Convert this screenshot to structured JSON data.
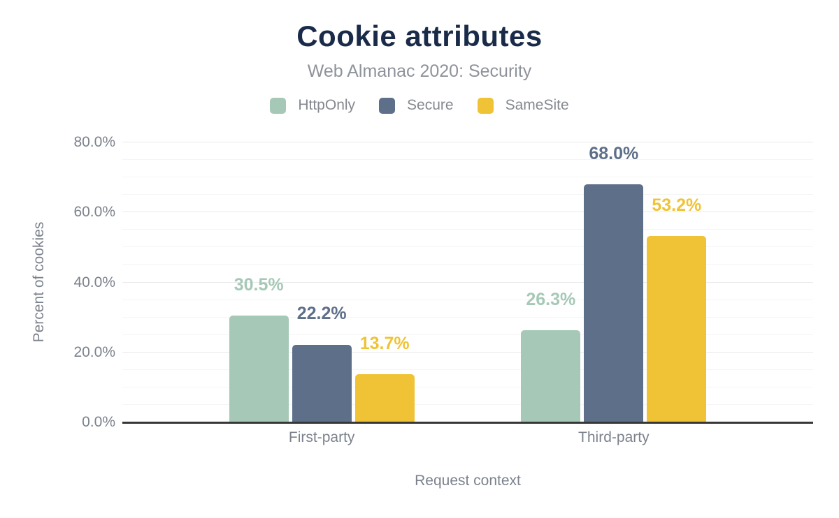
{
  "header": {
    "title": "Cookie attributes",
    "subtitle": "Web Almanac 2020: Security"
  },
  "legend": {
    "items": [
      {
        "label": "HttpOnly",
        "color": "#a6c9b7"
      },
      {
        "label": "Secure",
        "color": "#5e6f8a"
      },
      {
        "label": "SameSite",
        "color": "#f0c336"
      }
    ]
  },
  "chart_data": {
    "type": "bar",
    "title": "Cookie attributes",
    "subtitle": "Web Almanac 2020: Security",
    "categories": [
      "First-party",
      "Third-party"
    ],
    "series": [
      {
        "name": "HttpOnly",
        "color": "#a6c9b7",
        "values": [
          30.5,
          26.3
        ]
      },
      {
        "name": "Secure",
        "color": "#5e6f8a",
        "values": [
          22.2,
          68.0
        ]
      },
      {
        "name": "SameSite",
        "color": "#f0c336",
        "values": [
          13.7,
          53.2
        ]
      }
    ],
    "data_labels": [
      [
        "30.5%",
        "22.2%",
        "13.7%"
      ],
      [
        "26.3%",
        "68.0%",
        "53.2%"
      ]
    ],
    "xlabel": "Request context",
    "ylabel": "Percent of cookies",
    "ylim": [
      0,
      80
    ],
    "ytick_step": 20,
    "minor_grid_step": 5,
    "ytick_labels": [
      "0.0%",
      "20.0%",
      "40.0%",
      "60.0%",
      "80.0%"
    ],
    "value_suffix": "%",
    "grid": true,
    "legend_position": "top-center"
  },
  "colors": {
    "title": "#1a2b49",
    "subtitle": "#8e939b",
    "axis_text": "#7c828c",
    "axis_line": "#373737",
    "grid_major": "#e9e9e9",
    "grid_minor": "#f5f5f5",
    "background": "#ffffff"
  }
}
